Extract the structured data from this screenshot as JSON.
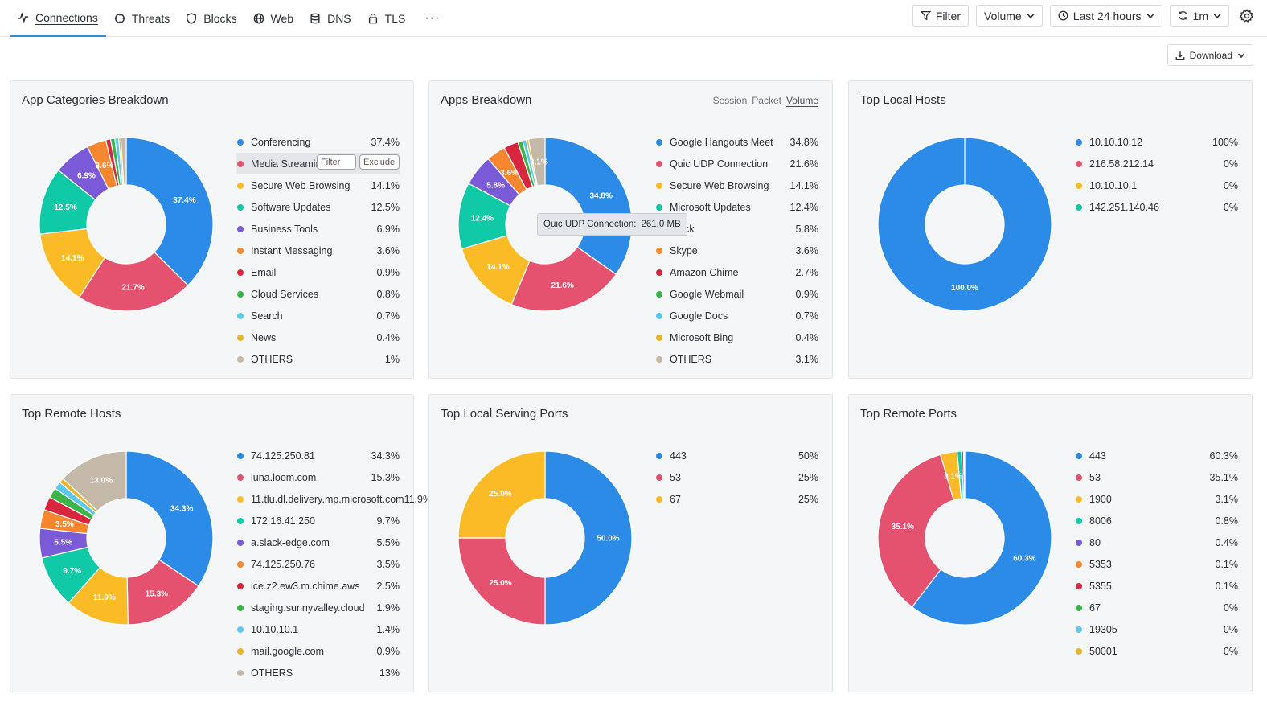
{
  "nav": {
    "tabs": [
      {
        "label": "Connections",
        "icon": "activity-icon"
      },
      {
        "label": "Threats",
        "icon": "crosshair-icon"
      },
      {
        "label": "Blocks",
        "icon": "shield-icon"
      },
      {
        "label": "Web",
        "icon": "globe-icon"
      },
      {
        "label": "DNS",
        "icon": "database-icon"
      },
      {
        "label": "TLS",
        "icon": "lock-icon"
      }
    ],
    "more": "···"
  },
  "controls": {
    "filter_label": "Filter",
    "metric_label": "Volume",
    "time_label": "Last 24 hours",
    "refresh_label": "1m"
  },
  "download_label": "Download",
  "panels": {
    "app_categories": {
      "title": "App Categories Breakdown",
      "action_filter": "Filter",
      "action_exclude": "Exclude",
      "chart_data": {
        "type": "donut",
        "items": [
          {
            "label": "Conferencing",
            "value": 37.4,
            "display": "37.4%",
            "slice_label": "37.4%",
            "color": "#2b8be6"
          },
          {
            "label": "Media Streaming",
            "value": 21.7,
            "display": "21.7%",
            "slice_label": "21.7%",
            "color": "#e5526f"
          },
          {
            "label": "Secure Web Browsing",
            "value": 14.1,
            "display": "14.1%",
            "slice_label": "14.1%",
            "color": "#fbbb26"
          },
          {
            "label": "Software Updates",
            "value": 12.5,
            "display": "12.5%",
            "slice_label": "12.5%",
            "color": "#10c9a6"
          },
          {
            "label": "Business Tools",
            "value": 6.9,
            "display": "6.9%",
            "slice_label": "6.9%",
            "color": "#7b5ad8"
          },
          {
            "label": "Instant Messaging",
            "value": 3.6,
            "display": "3.6%",
            "slice_label": "3.6%",
            "color": "#f7872e"
          },
          {
            "label": "Email",
            "value": 0.9,
            "display": "0.9%",
            "slice_label": "",
            "color": "#d7263d"
          },
          {
            "label": "Cloud Services",
            "value": 0.8,
            "display": "0.8%",
            "slice_label": "",
            "color": "#3ab54a"
          },
          {
            "label": "Search",
            "value": 0.7,
            "display": "0.7%",
            "slice_label": "",
            "color": "#5bc8ec"
          },
          {
            "label": "News",
            "value": 0.4,
            "display": "0.4%",
            "slice_label": "",
            "color": "#e9b62b"
          },
          {
            "label": "OTHERS",
            "value": 1,
            "display": "1%",
            "slice_label": "",
            "color": "#c4b9a8"
          }
        ]
      }
    },
    "apps": {
      "title": "Apps Breakdown",
      "toggle": [
        "Session",
        "Packet",
        "Volume"
      ],
      "tooltip_label": "Quic UDP Connection:",
      "tooltip_value": "261.0 MB",
      "chart_data": {
        "type": "donut",
        "items": [
          {
            "label": "Google Hangouts Meet",
            "value": 34.8,
            "display": "34.8%",
            "slice_label": "34.8%",
            "color": "#2b8be6"
          },
          {
            "label": "Quic UDP Connection",
            "value": 21.6,
            "display": "21.6%",
            "slice_label": "21.6%",
            "color": "#e5526f"
          },
          {
            "label": "Secure Web Browsing",
            "value": 14.1,
            "display": "14.1%",
            "slice_label": "14.1%",
            "color": "#fbbb26"
          },
          {
            "label": "Microsoft Updates",
            "value": 12.4,
            "display": "12.4%",
            "slice_label": "12.4%",
            "color": "#10c9a6"
          },
          {
            "label": "Slack",
            "value": 5.8,
            "display": "5.8%",
            "slice_label": "5.8%",
            "color": "#7b5ad8"
          },
          {
            "label": "Skype",
            "value": 3.6,
            "display": "3.6%",
            "slice_label": "3.6%",
            "color": "#f7872e"
          },
          {
            "label": "Amazon Chime",
            "value": 2.7,
            "display": "2.7%",
            "slice_label": "",
            "color": "#d7263d"
          },
          {
            "label": "Google Webmail",
            "value": 0.9,
            "display": "0.9%",
            "slice_label": "",
            "color": "#3ab54a"
          },
          {
            "label": "Google Docs",
            "value": 0.7,
            "display": "0.7%",
            "slice_label": "",
            "color": "#5bc8ec"
          },
          {
            "label": "Microsoft Bing",
            "value": 0.4,
            "display": "0.4%",
            "slice_label": "",
            "color": "#e9b62b"
          },
          {
            "label": "OTHERS",
            "value": 3.1,
            "display": "3.1%",
            "slice_label": "3.1%",
            "color": "#c4b9a8"
          }
        ]
      }
    },
    "local_hosts": {
      "title": "Top Local Hosts",
      "chart_data": {
        "type": "donut",
        "items": [
          {
            "label": "10.10.10.12",
            "value": 100,
            "display": "100%",
            "slice_label": "100.0%",
            "color": "#2b8be6"
          },
          {
            "label": "216.58.212.14",
            "value": 0,
            "display": "0%",
            "slice_label": "",
            "color": "#e5526f"
          },
          {
            "label": "10.10.10.1",
            "value": 0,
            "display": "0%",
            "slice_label": "",
            "color": "#fbbb26"
          },
          {
            "label": "142.251.140.46",
            "value": 0,
            "display": "0%",
            "slice_label": "",
            "color": "#10c9a6"
          }
        ]
      }
    },
    "remote_hosts": {
      "title": "Top Remote Hosts",
      "chart_data": {
        "type": "donut",
        "items": [
          {
            "label": "74.125.250.81",
            "value": 34.3,
            "display": "34.3%",
            "slice_label": "34.3%",
            "color": "#2b8be6"
          },
          {
            "label": "luna.loom.com",
            "value": 15.3,
            "display": "15.3%",
            "slice_label": "15.3%",
            "color": "#e5526f"
          },
          {
            "label": "11.tlu.dl.delivery.mp.microsoft.com",
            "value": 11.9,
            "display": "11.9%",
            "slice_label": "11.9%",
            "color": "#fbbb26"
          },
          {
            "label": "172.16.41.250",
            "value": 9.7,
            "display": "9.7%",
            "slice_label": "9.7%",
            "color": "#10c9a6"
          },
          {
            "label": "a.slack-edge.com",
            "value": 5.5,
            "display": "5.5%",
            "slice_label": "5.5%",
            "color": "#7b5ad8"
          },
          {
            "label": "74.125.250.76",
            "value": 3.5,
            "display": "3.5%",
            "slice_label": "3.5%",
            "color": "#f7872e"
          },
          {
            "label": "ice.z2.ew3.m.chime.aws",
            "value": 2.5,
            "display": "2.5%",
            "slice_label": "",
            "color": "#d7263d"
          },
          {
            "label": "staging.sunnyvalley.cloud",
            "value": 1.9,
            "display": "1.9%",
            "slice_label": "",
            "color": "#3ab54a"
          },
          {
            "label": "10.10.10.1",
            "value": 1.4,
            "display": "1.4%",
            "slice_label": "",
            "color": "#5bc8ec"
          },
          {
            "label": "mail.google.com",
            "value": 0.9,
            "display": "0.9%",
            "slice_label": "",
            "color": "#e9b62b"
          },
          {
            "label": "OTHERS",
            "value": 13,
            "display": "13%",
            "slice_label": "13.0%",
            "color": "#c4b9a8"
          }
        ]
      }
    },
    "local_ports": {
      "title": "Top Local Serving Ports",
      "chart_data": {
        "type": "donut",
        "items": [
          {
            "label": "443",
            "value": 50,
            "display": "50%",
            "slice_label": "50.0%",
            "color": "#2b8be6"
          },
          {
            "label": "53",
            "value": 25,
            "display": "25%",
            "slice_label": "25.0%",
            "color": "#e5526f"
          },
          {
            "label": "67",
            "value": 25,
            "display": "25%",
            "slice_label": "25.0%",
            "color": "#fbbb26"
          }
        ]
      }
    },
    "remote_ports": {
      "title": "Top Remote Ports",
      "chart_data": {
        "type": "donut",
        "items": [
          {
            "label": "443",
            "value": 60.3,
            "display": "60.3%",
            "slice_label": "60.3%",
            "color": "#2b8be6"
          },
          {
            "label": "53",
            "value": 35.1,
            "display": "35.1%",
            "slice_label": "35.1%",
            "color": "#e5526f"
          },
          {
            "label": "1900",
            "value": 3.1,
            "display": "3.1%",
            "slice_label": "3.1%",
            "color": "#fbbb26"
          },
          {
            "label": "8006",
            "value": 0.8,
            "display": "0.8%",
            "slice_label": "",
            "color": "#10c9a6"
          },
          {
            "label": "80",
            "value": 0.4,
            "display": "0.4%",
            "slice_label": "",
            "color": "#7b5ad8"
          },
          {
            "label": "5353",
            "value": 0.1,
            "display": "0.1%",
            "slice_label": "",
            "color": "#f7872e"
          },
          {
            "label": "5355",
            "value": 0.1,
            "display": "0.1%",
            "slice_label": "",
            "color": "#d7263d"
          },
          {
            "label": "67",
            "value": 0,
            "display": "0%",
            "slice_label": "",
            "color": "#3ab54a"
          },
          {
            "label": "19305",
            "value": 0,
            "display": "0%",
            "slice_label": "",
            "color": "#5bc8ec"
          },
          {
            "label": "50001",
            "value": 0,
            "display": "0%",
            "slice_label": "",
            "color": "#e9b62b"
          }
        ]
      }
    }
  }
}
